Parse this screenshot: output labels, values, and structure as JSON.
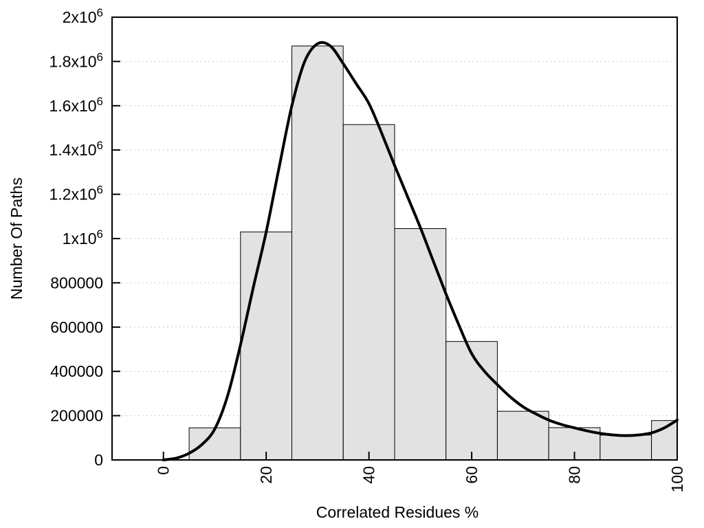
{
  "figure": {
    "background": "#ffffff",
    "bar_fill": "#e2e2e2",
    "bar_stroke": "#000000",
    "curve_color": "#000000",
    "grid_color": "#b8b8b8",
    "axis_color": "#000000",
    "text_color": "#000000"
  },
  "chart_data": {
    "type": "bar",
    "subtype": "histogram-with-smooth-curve-overlay",
    "title": "",
    "xlabel": "Correlated Residues %",
    "ylabel": "Number Of Paths",
    "xlim": [
      -10,
      100
    ],
    "ylim": [
      0,
      2000000
    ],
    "grid": "horizontal dotted gridlines at each y tick",
    "legend": "none",
    "x_tick_rotation": -90,
    "xticks": [
      {
        "value": 0,
        "label": "0"
      },
      {
        "value": 20,
        "label": "20"
      },
      {
        "value": 40,
        "label": "40"
      },
      {
        "value": 60,
        "label": "60"
      },
      {
        "value": 80,
        "label": "80"
      },
      {
        "value": 100,
        "label": "100"
      }
    ],
    "yticks": [
      {
        "value": 0,
        "label": "0"
      },
      {
        "value": 200000,
        "label": "200000"
      },
      {
        "value": 400000,
        "label": "400000"
      },
      {
        "value": 600000,
        "label": "600000"
      },
      {
        "value": 800000,
        "label": "800000"
      },
      {
        "value": 1000000,
        "label": "1x10^6"
      },
      {
        "value": 1200000,
        "label": "1.2x10^6"
      },
      {
        "value": 1400000,
        "label": "1.4x10^6"
      },
      {
        "value": 1600000,
        "label": "1.6x10^6"
      },
      {
        "value": 1800000,
        "label": "1.8x10^6"
      },
      {
        "value": 2000000,
        "label": "2x10^6"
      }
    ],
    "bars": {
      "bin_edges": [
        5,
        15,
        25,
        35,
        45,
        55,
        65,
        75,
        85,
        95,
        100
      ],
      "values": [
        145000,
        1030000,
        1870000,
        1515000,
        1045000,
        535000,
        220000,
        146000,
        112000,
        178000
      ]
    },
    "curve": {
      "points": [
        [
          0,
          0
        ],
        [
          2.5,
          8000
        ],
        [
          5,
          30000
        ],
        [
          7.5,
          70000
        ],
        [
          10,
          140000
        ],
        [
          12.5,
          290000
        ],
        [
          15,
          520000
        ],
        [
          17.5,
          780000
        ],
        [
          20,
          1030000
        ],
        [
          22.5,
          1320000
        ],
        [
          25,
          1600000
        ],
        [
          27.5,
          1800000
        ],
        [
          30,
          1880000
        ],
        [
          32.5,
          1870000
        ],
        [
          35,
          1790000
        ],
        [
          37.5,
          1700000
        ],
        [
          40,
          1610000
        ],
        [
          42.5,
          1475000
        ],
        [
          45,
          1330000
        ],
        [
          47.5,
          1190000
        ],
        [
          50,
          1050000
        ],
        [
          52.5,
          900000
        ],
        [
          55,
          750000
        ],
        [
          57.5,
          610000
        ],
        [
          60,
          480000
        ],
        [
          62.5,
          400000
        ],
        [
          65,
          340000
        ],
        [
          67.5,
          285000
        ],
        [
          70,
          240000
        ],
        [
          72.5,
          208000
        ],
        [
          75,
          180000
        ],
        [
          77.5,
          160000
        ],
        [
          80,
          145000
        ],
        [
          82.5,
          131000
        ],
        [
          85,
          120000
        ],
        [
          87.5,
          113000
        ],
        [
          90,
          110000
        ],
        [
          92.5,
          113000
        ],
        [
          95,
          122000
        ],
        [
          97.5,
          145000
        ],
        [
          100,
          180000
        ]
      ]
    }
  }
}
